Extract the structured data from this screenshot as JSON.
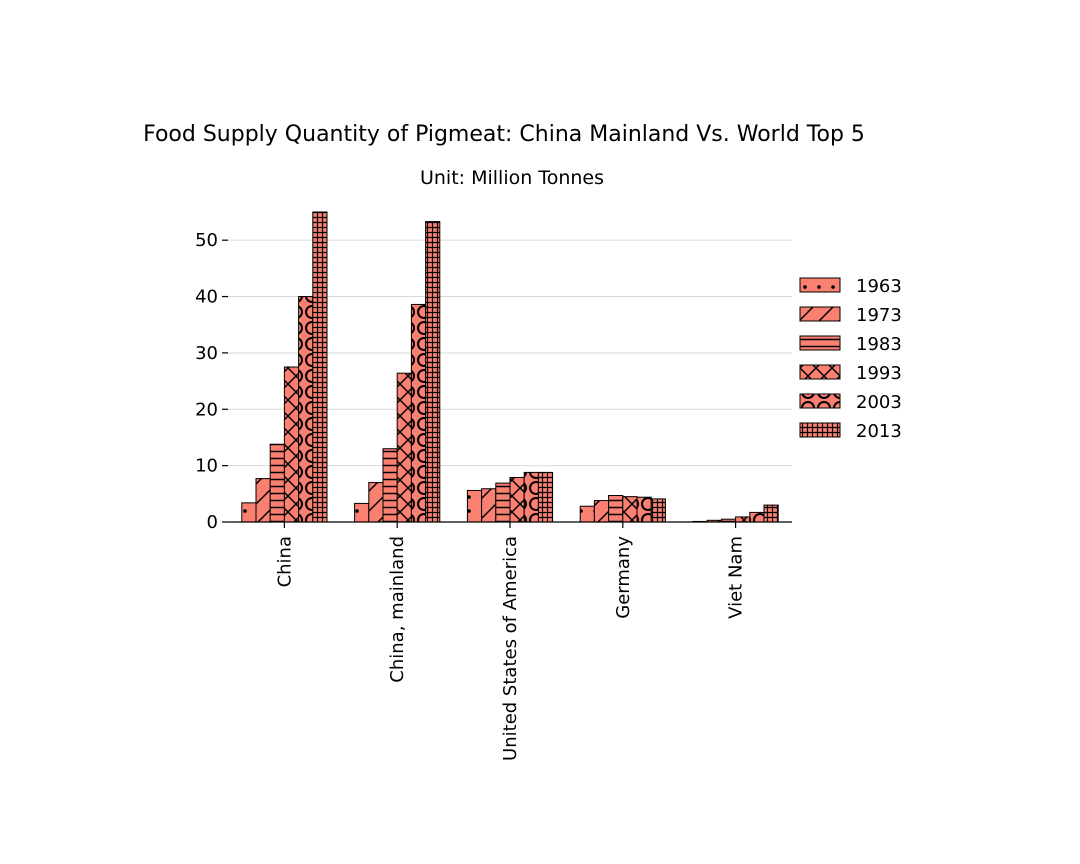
{
  "chart_data": {
    "type": "bar",
    "title": "Food Supply Quantity of Pigmeat: China Mainland Vs. World Top 5",
    "subtitle": "Unit: Million Tonnes",
    "xlabel": "",
    "ylabel": "",
    "categories": [
      "China",
      "China, mainland",
      "United States of America",
      "Germany",
      "Viet Nam"
    ],
    "series": [
      {
        "name": "1963",
        "values": [
          3.4,
          3.3,
          5.6,
          2.8,
          0.1
        ]
      },
      {
        "name": "1973",
        "values": [
          7.7,
          7.0,
          5.9,
          3.8,
          0.3
        ]
      },
      {
        "name": "1983",
        "values": [
          13.8,
          13.0,
          6.9,
          4.7,
          0.5
        ]
      },
      {
        "name": "1993",
        "values": [
          27.5,
          26.4,
          7.9,
          4.5,
          0.9
        ]
      },
      {
        "name": "2003",
        "values": [
          40.0,
          38.6,
          8.8,
          4.4,
          1.7
        ]
      },
      {
        "name": "2013",
        "values": [
          55.0,
          53.3,
          8.8,
          4.1,
          3.0
        ]
      }
    ],
    "ylim": [
      0,
      55
    ],
    "yticks": [
      "0",
      "10",
      "20",
      "30",
      "40",
      "50"
    ],
    "grid": "horizontal",
    "legend": "right",
    "bar_color": "#fa8072",
    "edge_color": "#000000",
    "hatches": [
      "dots",
      "slash",
      "horizontal",
      "cross",
      "circles",
      "grid"
    ]
  }
}
